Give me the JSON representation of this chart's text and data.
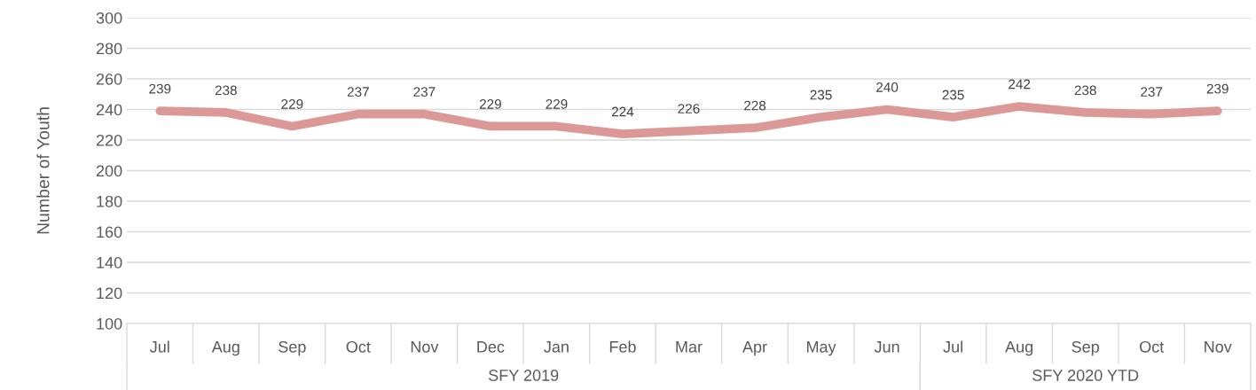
{
  "chart_data": {
    "type": "line",
    "ylabel": "Number of Youth",
    "categories": [
      "Jul",
      "Aug",
      "Sep",
      "Oct",
      "Nov",
      "Dec",
      "Jan",
      "Feb",
      "Mar",
      "Apr",
      "May",
      "Jun",
      "Jul",
      "Aug",
      "Sep",
      "Oct",
      "Nov"
    ],
    "series": [
      {
        "color": "#dc9896",
        "values": [
          239,
          238,
          229,
          237,
          237,
          229,
          229,
          224,
          226,
          228,
          235,
          240,
          235,
          242,
          238,
          237,
          239
        ]
      }
    ],
    "ylim": [
      100,
      300
    ],
    "yticks": [
      100,
      120,
      140,
      160,
      180,
      200,
      220,
      240,
      260,
      280,
      300
    ],
    "grid": "y",
    "data_labels": true,
    "marker": "none",
    "line_style": "solid",
    "annotations": [
      "SFY 2019",
      "SFY 2020 YTD"
    ]
  }
}
